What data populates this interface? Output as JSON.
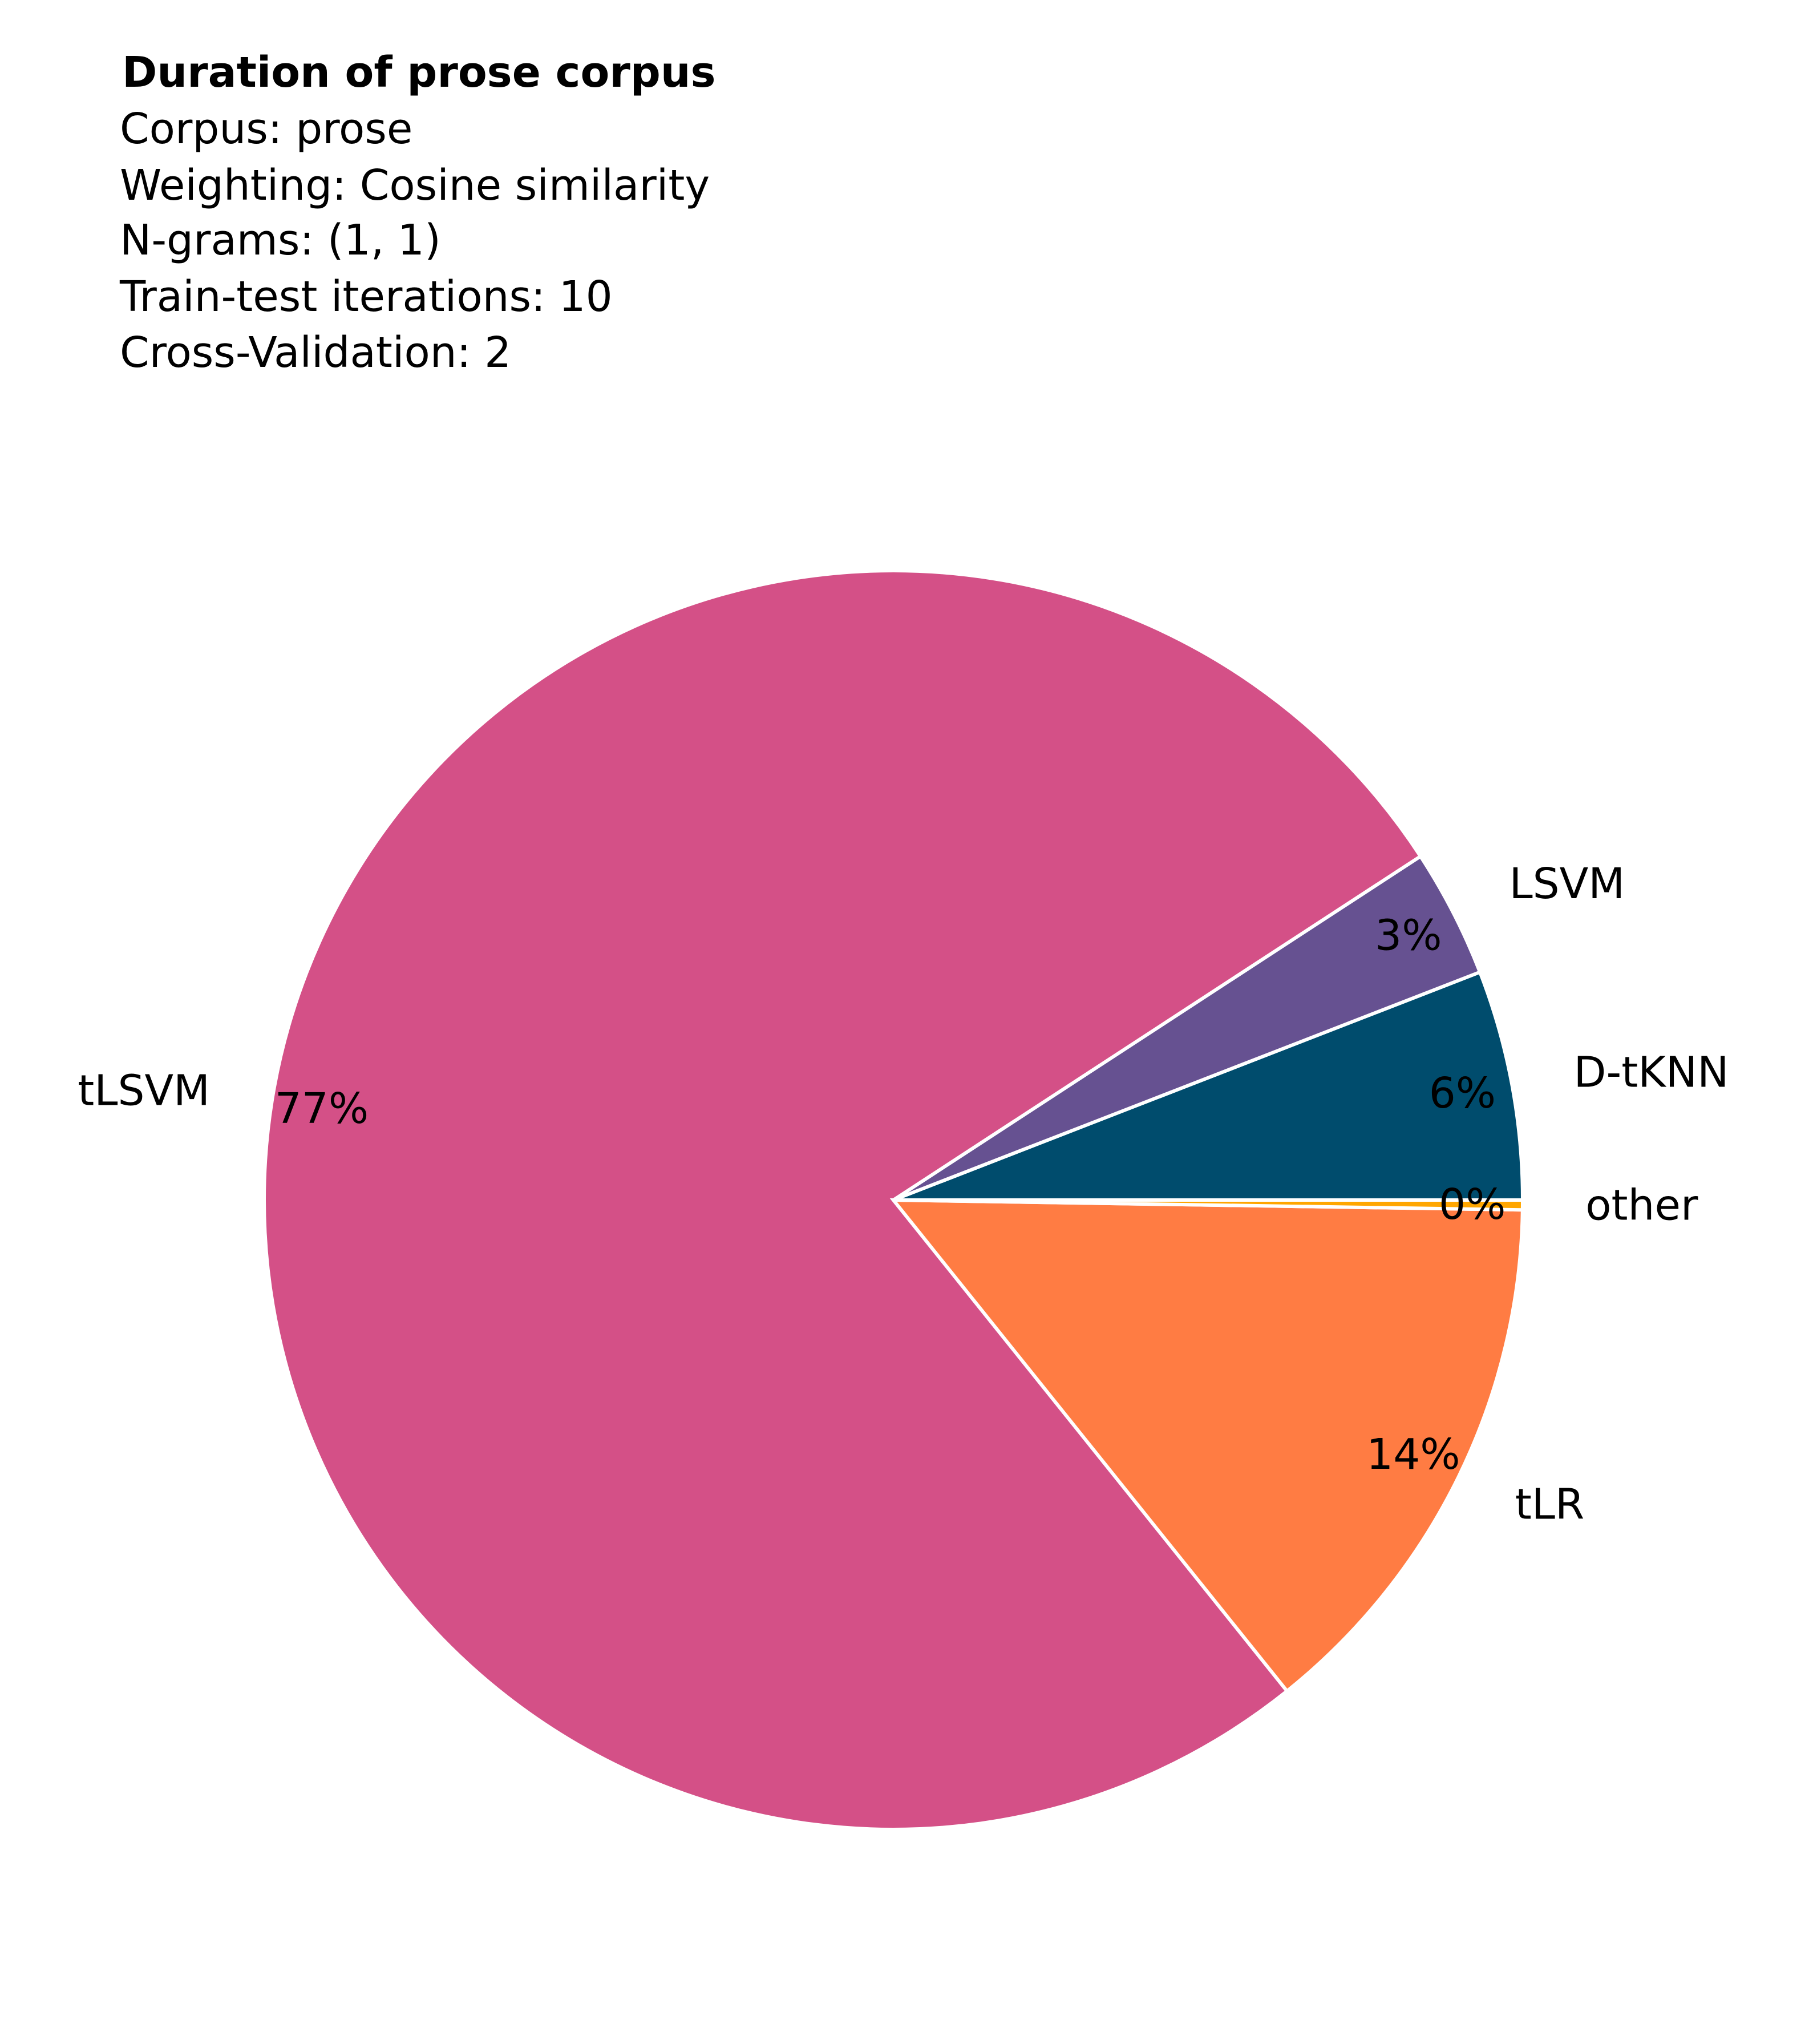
{
  "chart_data": {
    "type": "pie",
    "title": "Duration of prose corpus",
    "subtitle_lines": [
      "Corpus: prose",
      "Weighting: Cosine similarity",
      "N-grams: (1, 1)",
      "Train-test iterations: 10",
      "Cross-Validation: 2"
    ],
    "start_angle_deg": 0,
    "direction": "counterclockwise",
    "slices": [
      {
        "label": "D-tKNN",
        "percent_label": "6%",
        "value": 5.9,
        "color": "#004c6d"
      },
      {
        "label": "LSVM",
        "percent_label": "3%",
        "value": 3.3,
        "color": "#665191"
      },
      {
        "label": "tLSVM",
        "percent_label": "77%",
        "value": 76.6,
        "color": "#d45087"
      },
      {
        "label": "tLR",
        "percent_label": "14%",
        "value": 14.0,
        "color": "#ff7c43"
      },
      {
        "label": "other",
        "percent_label": "0%",
        "value": 0.25,
        "color": "#ffa600"
      }
    ],
    "slice_edge_color": "#ffffff"
  }
}
